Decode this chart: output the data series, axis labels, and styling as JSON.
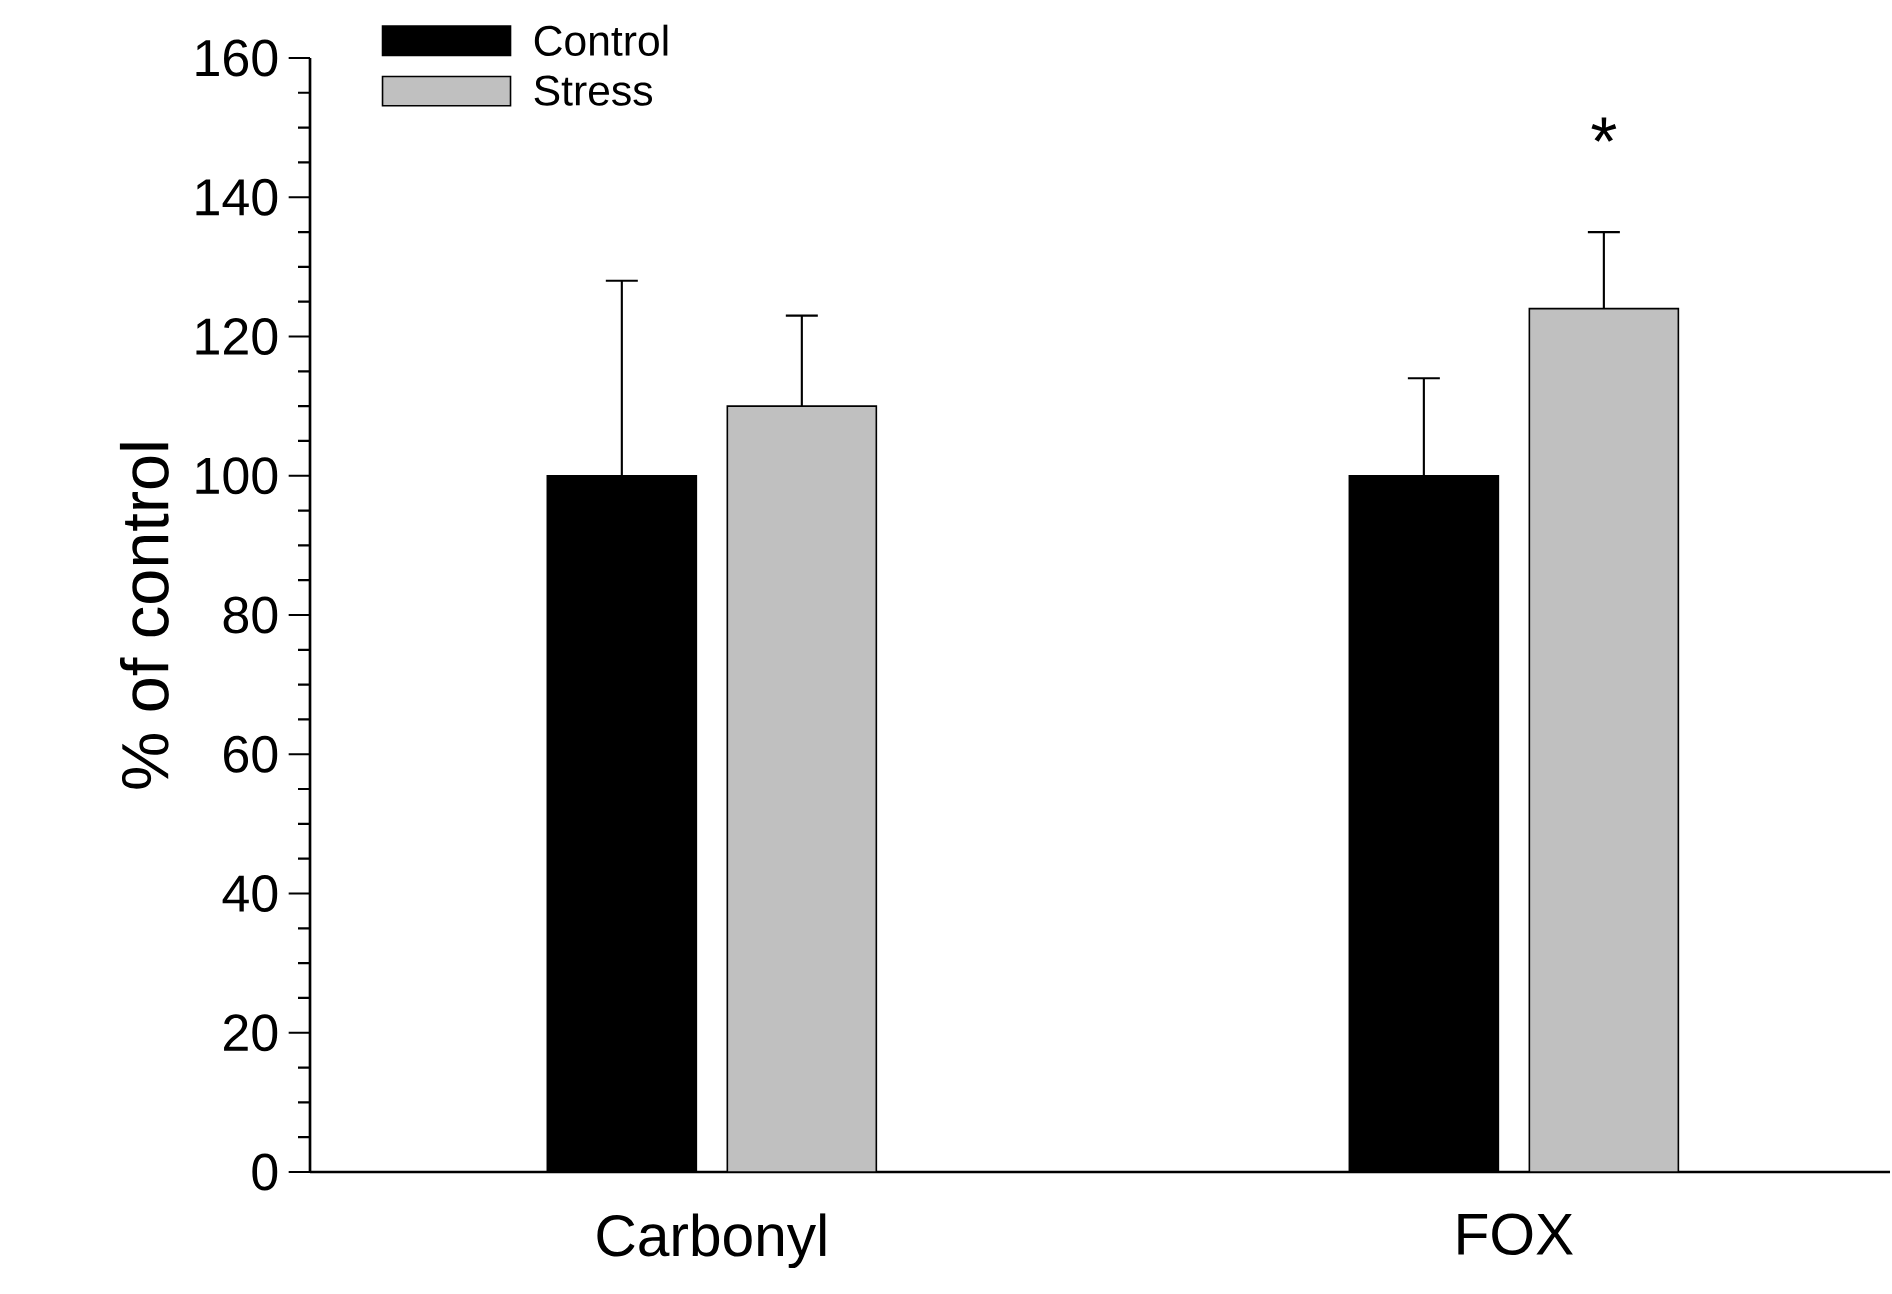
{
  "chart_data": {
    "type": "bar",
    "ylabel": "% of control",
    "categories": [
      "Carbonyl",
      "FOX"
    ],
    "series": [
      {
        "name": "Control",
        "color": "#000000",
        "values": [
          100,
          100
        ],
        "errors": [
          28,
          14
        ]
      },
      {
        "name": "Stress",
        "color": "#c0c0c0",
        "values": [
          110,
          124
        ],
        "errors": [
          13,
          11
        ]
      }
    ],
    "ylim": [
      0,
      160
    ],
    "yticks": [
      0,
      20,
      40,
      60,
      80,
      100,
      120,
      140,
      160
    ],
    "legend": "top left",
    "annotations": [
      "*"
    ]
  }
}
